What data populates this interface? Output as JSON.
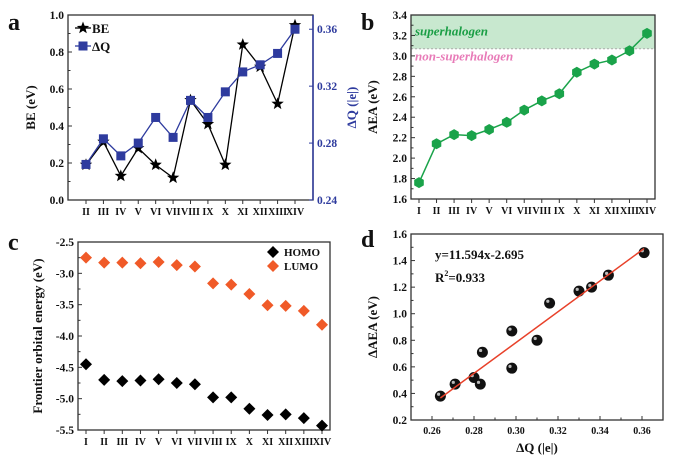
{
  "chart_data": [
    {
      "panel": "a",
      "type": "line",
      "categories": [
        "II",
        "III",
        "IV",
        "V",
        "VI",
        "VII",
        "VIII",
        "IX",
        "X",
        "XI",
        "XII",
        "XIII",
        "XIV"
      ],
      "ylabel": "BE (eV)",
      "ylim": [
        0,
        1.0
      ],
      "yticks": [
        "0.0",
        "0.2",
        "0.4",
        "0.6",
        "0.8",
        "1.0"
      ],
      "y2label": "ΔQ (|e|)",
      "y2lim": [
        0.24,
        0.37
      ],
      "y2ticks": [
        "0.24",
        "0.28",
        "0.32",
        "0.36"
      ],
      "legend_position": "top-left",
      "series": [
        {
          "name": "BE",
          "axis": "left",
          "marker": "star",
          "color": "#000000",
          "values": [
            0.19,
            0.315,
            0.13,
            0.28,
            0.19,
            0.12,
            0.54,
            0.41,
            0.19,
            0.84,
            0.72,
            0.52,
            0.945
          ]
        },
        {
          "name": "ΔQ",
          "axis": "right",
          "marker": "square",
          "color": "#2e3b9e",
          "values": [
            0.265,
            0.283,
            0.271,
            0.28,
            0.298,
            0.284,
            0.31,
            0.298,
            0.316,
            0.33,
            0.335,
            0.343,
            0.36
          ]
        }
      ]
    },
    {
      "panel": "b",
      "type": "line",
      "categories": [
        "I",
        "II",
        "III",
        "IV",
        "V",
        "VI",
        "VII",
        "VIII",
        "IX",
        "X",
        "XI",
        "XII",
        "XIII",
        "XIV"
      ],
      "ylabel": "AEA (eV)",
      "ylim": [
        1.6,
        3.4
      ],
      "yticks": [
        "1.6",
        "1.8",
        "2.0",
        "2.2",
        "2.4",
        "2.6",
        "2.8",
        "3.0",
        "3.2",
        "3.4"
      ],
      "color": "#1aa34a",
      "region": {
        "from": 3.07,
        "to": 3.4,
        "color": "#c8e8cf"
      },
      "annotations": [
        {
          "text": "superhalogen",
          "color": "#1a9e45"
        },
        {
          "text": "non-superhalogen",
          "color": "#e87bb8"
        }
      ],
      "series": [
        {
          "values": [
            1.76,
            2.14,
            2.23,
            2.22,
            2.28,
            2.35,
            2.47,
            2.56,
            2.63,
            2.84,
            2.92,
            2.96,
            3.05,
            3.22
          ]
        }
      ]
    },
    {
      "panel": "c",
      "type": "scatter",
      "categories": [
        "I",
        "II",
        "III",
        "IV",
        "V",
        "VI",
        "VII",
        "VIII",
        "IX",
        "X",
        "XI",
        "XII",
        "XIII",
        "XIV"
      ],
      "ylabel": "Frontier orbital energy (eV)",
      "ylim": [
        -5.5,
        -2.5
      ],
      "yticks": [
        "-5.5",
        "-5.0",
        "-4.5",
        "-4.0",
        "-3.5",
        "-3.0",
        "-2.5"
      ],
      "legend_position": "top-right",
      "series": [
        {
          "name": "HOMO",
          "marker": "diamond",
          "color": "#000000",
          "values": [
            -4.45,
            -4.7,
            -4.72,
            -4.71,
            -4.69,
            -4.75,
            -4.77,
            -4.98,
            -4.98,
            -5.16,
            -5.26,
            -5.25,
            -5.31,
            -5.43
          ]
        },
        {
          "name": "LUMO",
          "marker": "diamond",
          "color": "#f05a28",
          "values": [
            -2.75,
            -2.83,
            -2.83,
            -2.84,
            -2.82,
            -2.87,
            -2.89,
            -3.16,
            -3.18,
            -3.33,
            -3.51,
            -3.52,
            -3.6,
            -3.82
          ]
        }
      ]
    },
    {
      "panel": "d",
      "type": "scatter",
      "xlabel": "ΔQ (|e|)",
      "ylabel": "ΔAEA (eV)",
      "xlim": [
        0.25,
        0.37
      ],
      "ylim": [
        0.2,
        1.6
      ],
      "xticks": [
        "0.26",
        "0.28",
        "0.30",
        "0.32",
        "0.34",
        "0.36"
      ],
      "yticks": [
        "0.2",
        "0.4",
        "0.6",
        "0.8",
        "1.0",
        "1.2",
        "1.4",
        "1.6"
      ],
      "fit": {
        "equation": "y=11.594x-2.695",
        "r2_prefix": "R",
        "r2_sup": "2",
        "r2_value": "=0.933",
        "slope": 11.594,
        "intercept": -2.695,
        "color": "#e8412a"
      },
      "points": [
        [
          0.264,
          0.38
        ],
        [
          0.271,
          0.47
        ],
        [
          0.28,
          0.52
        ],
        [
          0.283,
          0.47
        ],
        [
          0.284,
          0.71
        ],
        [
          0.298,
          0.59
        ],
        [
          0.298,
          0.87
        ],
        [
          0.31,
          0.8
        ],
        [
          0.316,
          1.08
        ],
        [
          0.33,
          1.17
        ],
        [
          0.336,
          1.2
        ],
        [
          0.344,
          1.29
        ],
        [
          0.361,
          1.46
        ]
      ]
    }
  ],
  "panel_labels": [
    "a",
    "b",
    "c",
    "d"
  ]
}
